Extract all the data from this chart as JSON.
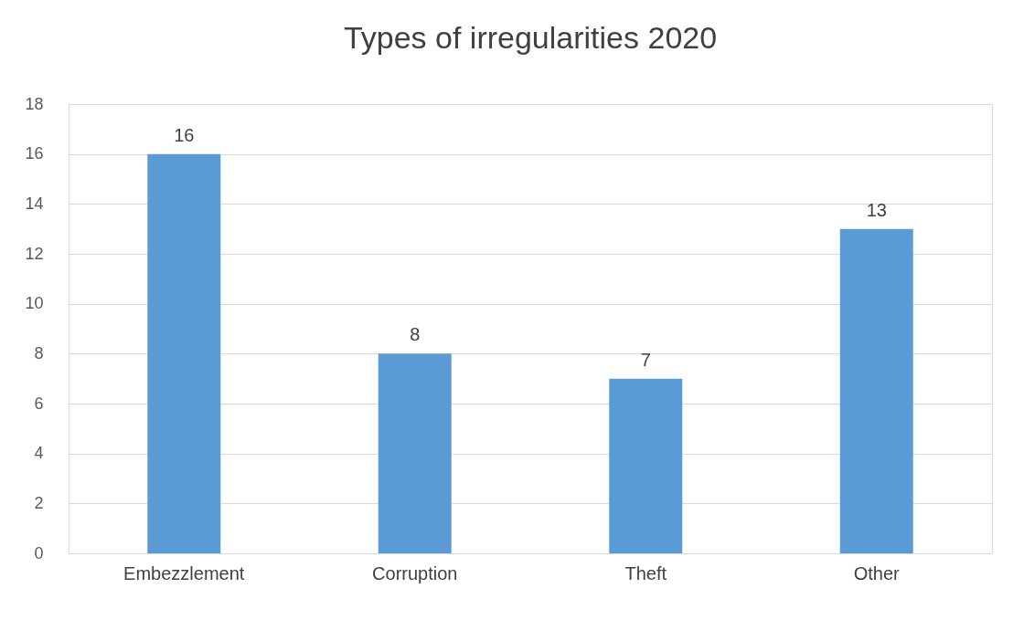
{
  "chart_data": {
    "type": "bar",
    "title": "Types of irregularities  2020",
    "categories": [
      "Embezzlement",
      "Corruption",
      "Theft",
      "Other"
    ],
    "values": [
      16,
      8,
      7,
      13
    ],
    "color": "#5b9bd5",
    "ylim": [
      0,
      18
    ],
    "yticks": [
      0,
      2,
      4,
      6,
      8,
      10,
      12,
      14,
      16,
      18
    ],
    "grid": "y",
    "data_labels": true
  }
}
